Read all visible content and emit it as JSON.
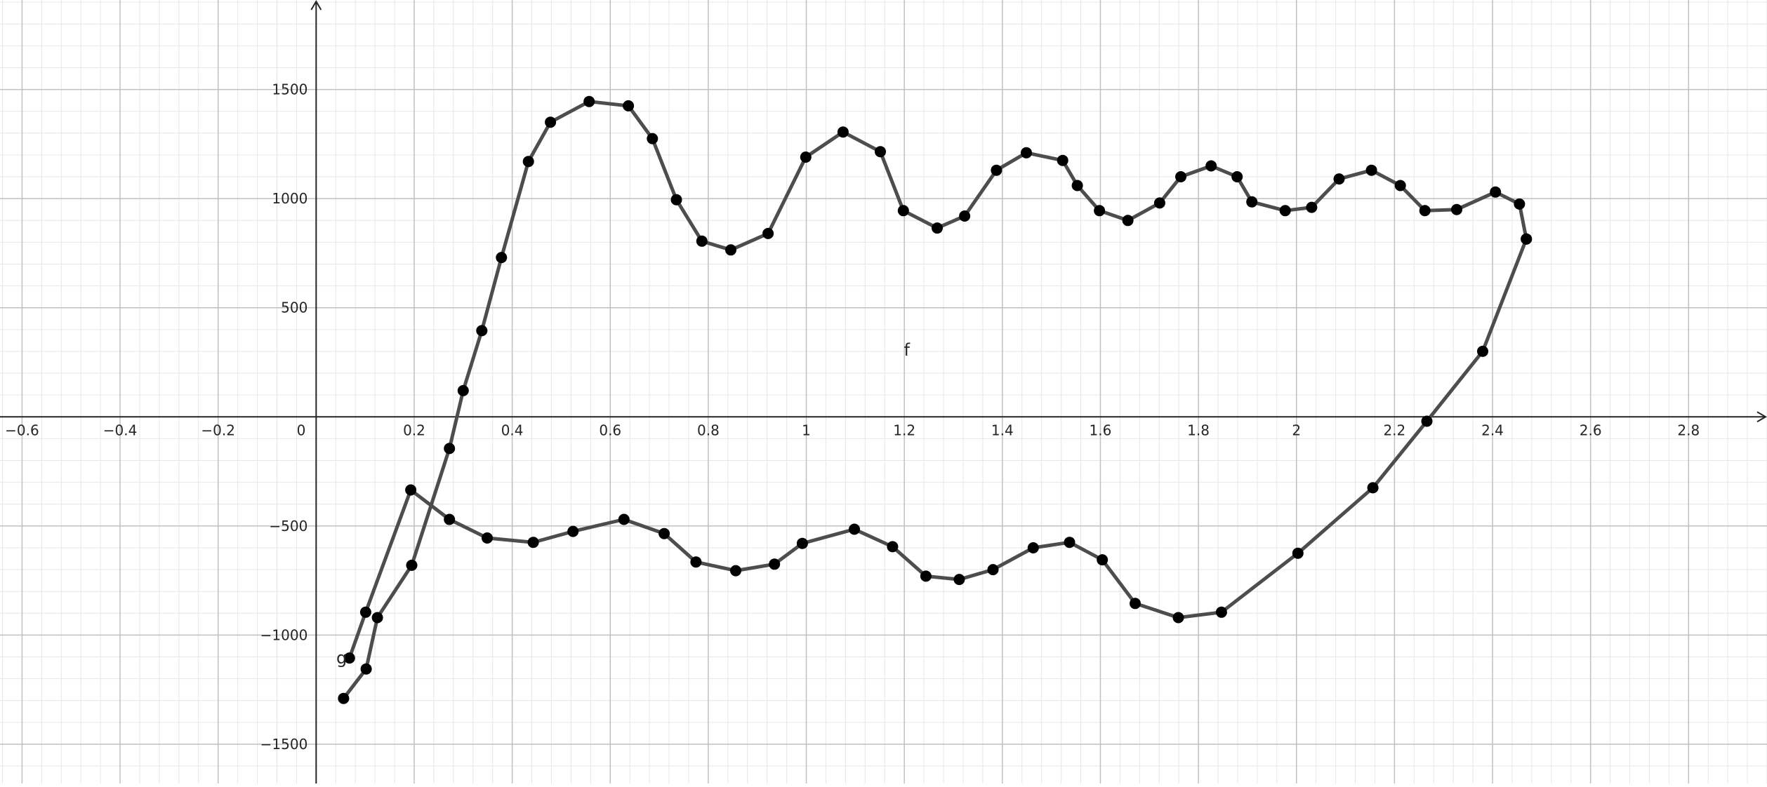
{
  "chart_data": {
    "type": "scatter",
    "title": "",
    "xlabel": "",
    "ylabel": "",
    "xlim": [
      -0.645,
      2.96
    ],
    "ylim": [
      -1680,
      1910
    ],
    "grid": true,
    "x_ticks": [
      {
        "value": -0.6,
        "label": "−0.6"
      },
      {
        "value": -0.4,
        "label": "−0.4"
      },
      {
        "value": -0.2,
        "label": "−0.2"
      },
      {
        "value": 0.2,
        "label": "0.2"
      },
      {
        "value": 0.4,
        "label": "0.4"
      },
      {
        "value": 0.6,
        "label": "0.6"
      },
      {
        "value": 0.8,
        "label": "0.8"
      },
      {
        "value": 1,
        "label": "1"
      },
      {
        "value": 1.2,
        "label": "1.2"
      },
      {
        "value": 1.4,
        "label": "1.4"
      },
      {
        "value": 1.6,
        "label": "1.6"
      },
      {
        "value": 1.8,
        "label": "1.8"
      },
      {
        "value": 2,
        "label": "2"
      },
      {
        "value": 2.2,
        "label": "2.2"
      },
      {
        "value": 2.4,
        "label": "2.4"
      },
      {
        "value": 2.6,
        "label": "2.6"
      },
      {
        "value": 2.8,
        "label": "2.8"
      }
    ],
    "y_ticks": [
      {
        "value": 1500,
        "label": "1500"
      },
      {
        "value": 1000,
        "label": "1000"
      },
      {
        "value": 500,
        "label": "500"
      },
      {
        "value": -500,
        "label": "−500"
      },
      {
        "value": -1000,
        "label": "−1000"
      },
      {
        "value": -1500,
        "label": "−1500"
      }
    ],
    "origin_label": "0",
    "series": [
      {
        "name": "f",
        "points": [
          [
            0.056,
            -1290
          ],
          [
            0.102,
            -1155
          ],
          [
            0.125,
            -920
          ],
          [
            0.195,
            -680
          ],
          [
            0.272,
            -145
          ],
          [
            0.3,
            120
          ],
          [
            0.338,
            395
          ],
          [
            0.378,
            730
          ],
          [
            0.433,
            1170
          ],
          [
            0.478,
            1350
          ],
          [
            0.557,
            1445
          ],
          [
            0.637,
            1425
          ],
          [
            0.686,
            1275
          ],
          [
            0.735,
            995
          ],
          [
            0.787,
            805
          ],
          [
            0.846,
            765
          ],
          [
            0.922,
            840
          ],
          [
            0.999,
            1190
          ],
          [
            1.075,
            1305
          ],
          [
            1.151,
            1215
          ],
          [
            1.198,
            945
          ],
          [
            1.267,
            865
          ],
          [
            1.323,
            920
          ],
          [
            1.388,
            1130
          ],
          [
            1.449,
            1210
          ],
          [
            1.523,
            1175
          ],
          [
            1.553,
            1060
          ],
          [
            1.598,
            945
          ],
          [
            1.656,
            900
          ],
          [
            1.721,
            980
          ],
          [
            1.764,
            1100
          ],
          [
            1.826,
            1150
          ],
          [
            1.879,
            1100
          ],
          [
            1.909,
            985
          ],
          [
            1.977,
            945
          ],
          [
            2.031,
            960
          ],
          [
            2.087,
            1090
          ],
          [
            2.153,
            1130
          ],
          [
            2.212,
            1060
          ],
          [
            2.262,
            945
          ],
          [
            2.327,
            950
          ],
          [
            2.406,
            1030
          ],
          [
            2.455,
            975
          ],
          [
            2.469,
            815
          ]
        ]
      },
      {
        "name": "g",
        "points": [
          [
            0.068,
            -1105
          ],
          [
            0.101,
            -895
          ],
          [
            0.193,
            -335
          ],
          [
            0.272,
            -470
          ],
          [
            0.349,
            -555
          ],
          [
            0.443,
            -575
          ],
          [
            0.524,
            -525
          ],
          [
            0.628,
            -470
          ],
          [
            0.71,
            -535
          ],
          [
            0.775,
            -665
          ],
          [
            0.856,
            -705
          ],
          [
            0.935,
            -675
          ],
          [
            0.992,
            -580
          ],
          [
            1.098,
            -515
          ],
          [
            1.176,
            -595
          ],
          [
            1.244,
            -730
          ],
          [
            1.312,
            -745
          ],
          [
            1.381,
            -700
          ],
          [
            1.463,
            -600
          ],
          [
            1.537,
            -575
          ],
          [
            1.604,
            -655
          ],
          [
            1.671,
            -855
          ],
          [
            1.759,
            -920
          ],
          [
            1.847,
            -895
          ],
          [
            2.003,
            -625
          ],
          [
            2.156,
            -325
          ],
          [
            2.266,
            -20
          ],
          [
            2.38,
            300
          ],
          [
            2.469,
            815
          ]
        ]
      }
    ],
    "annotations": [
      {
        "text": "f",
        "x": 1.205,
        "y": 280
      },
      {
        "text": "g",
        "x": 0.052,
        "y": -1130
      }
    ],
    "colors": {
      "curve": "#4d4d4d",
      "point": "#000000",
      "major_grid": "#c0c0c0",
      "minor_grid": "#e6e6e6",
      "axis": "#252525",
      "label": "#252525"
    }
  }
}
